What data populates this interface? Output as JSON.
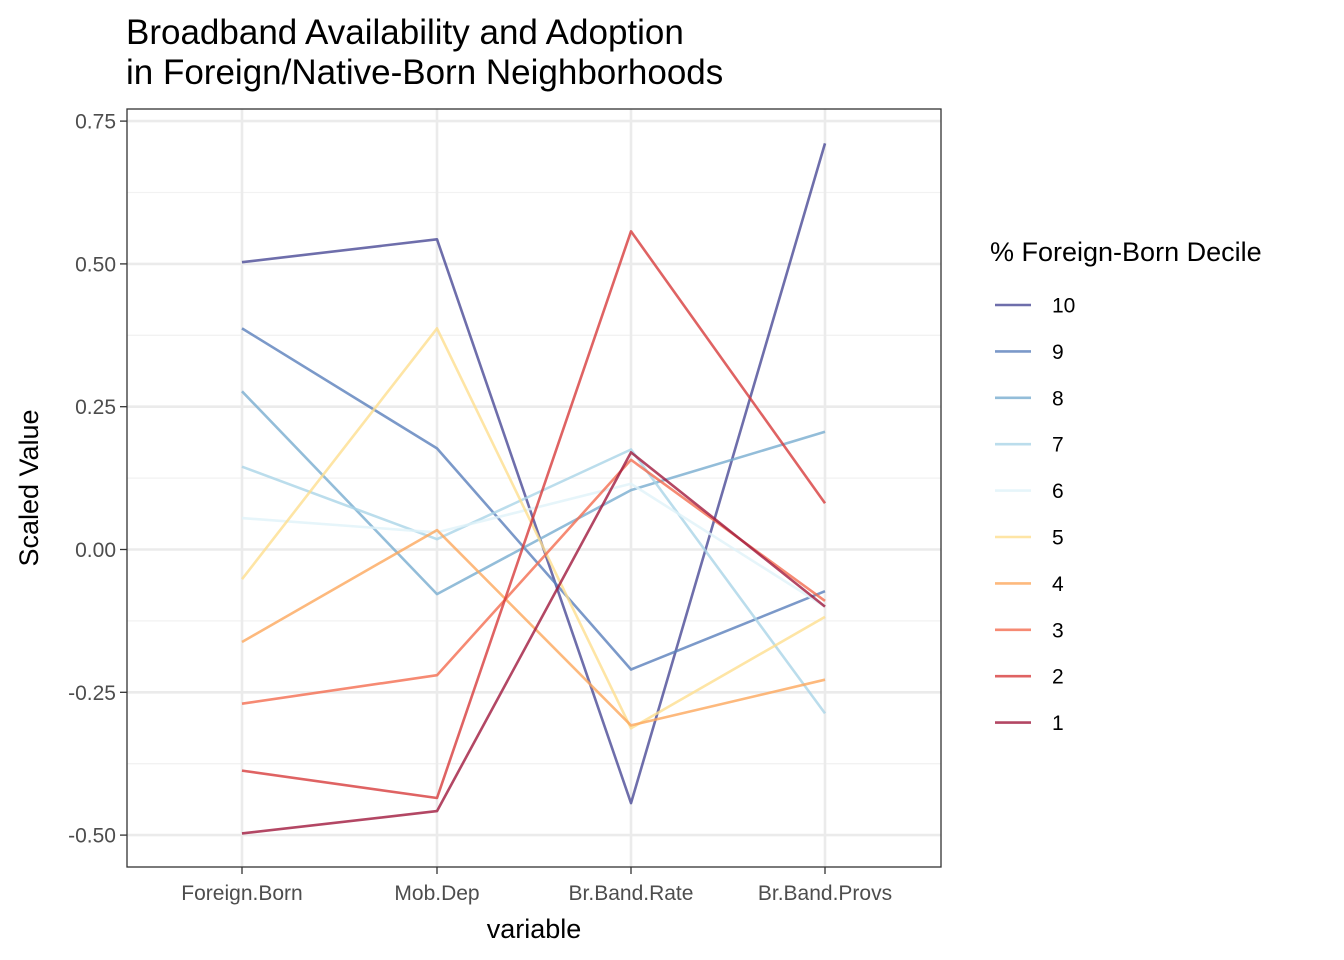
{
  "chart_data": {
    "type": "line",
    "title_lines": [
      "Broadband Availability and Adoption",
      "in Foreign/Native-Born Neighborhoods"
    ],
    "xlabel": "variable",
    "ylabel": "Scaled Value",
    "categories": [
      "Foreign.Born",
      "Mob.Dep",
      "Br.Band.Rate",
      "Br.Band.Provs"
    ],
    "y_ticks": [
      0.75,
      0.5,
      0.25,
      0.0,
      -0.25,
      -0.5
    ],
    "y_tick_labels": [
      "0.75",
      "0.50",
      "0.25",
      "0.00",
      "-0.25",
      "-0.50"
    ],
    "ylim": [
      -0.55,
      0.765
    ],
    "grid": true,
    "legend": {
      "title": "% Foreign-Born Decile",
      "placement": "right"
    },
    "series": [
      {
        "name": "10",
        "color": "#4a4a96",
        "values": [
          0.503,
          0.543,
          -0.444,
          0.711
        ]
      },
      {
        "name": "9",
        "color": "#5a7fbb",
        "values": [
          0.387,
          0.177,
          -0.21,
          -0.073
        ]
      },
      {
        "name": "8",
        "color": "#78acd0",
        "values": [
          0.277,
          -0.078,
          0.104,
          0.206
        ]
      },
      {
        "name": "7",
        "color": "#aad4e7",
        "values": [
          0.145,
          0.018,
          0.175,
          -0.287
        ]
      },
      {
        "name": "6",
        "color": "#e0f2f9",
        "values": [
          0.055,
          0.03,
          0.115,
          -0.1
        ]
      },
      {
        "name": "5",
        "color": "#fedf8e",
        "values": [
          -0.052,
          0.387,
          -0.313,
          -0.118
        ]
      },
      {
        "name": "4",
        "color": "#fca85d",
        "values": [
          -0.162,
          0.034,
          -0.308,
          -0.228
        ]
      },
      {
        "name": "3",
        "color": "#f46d50",
        "values": [
          -0.27,
          -0.22,
          0.157,
          -0.09
        ]
      },
      {
        "name": "2",
        "color": "#d73c3c",
        "values": [
          -0.387,
          -0.435,
          0.557,
          0.081
        ]
      },
      {
        "name": "1",
        "color": "#a0193d",
        "values": [
          -0.497,
          -0.458,
          0.17,
          -0.1
        ]
      }
    ]
  }
}
